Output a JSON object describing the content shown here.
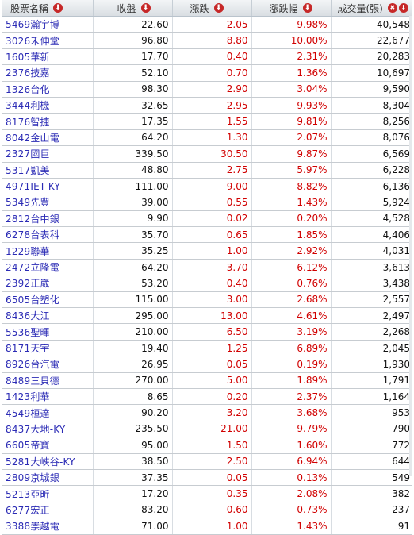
{
  "header": {
    "col_name": "股票名稱",
    "col_close": "收盤",
    "col_change": "漲跌",
    "col_pct": "漲跌幅",
    "col_volume": "成交量(張)",
    "sort_icon": "sort-down-icon",
    "close_icon": "close-icon",
    "sort_glyph": "⬇",
    "close_glyph": "✖"
  },
  "colors": {
    "change": "#d10000",
    "name": "#2b2bb5",
    "icon": "#c62828"
  },
  "rows": [
    {
      "name": "5469瀚宇博",
      "close": "22.60",
      "change": "2.05",
      "pct": "9.98%",
      "volume": "40,548"
    },
    {
      "name": "3026禾伸堂",
      "close": "96.80",
      "change": "8.80",
      "pct": "10.00%",
      "volume": "22,677"
    },
    {
      "name": "1605華新",
      "close": "17.70",
      "change": "0.40",
      "pct": "2.31%",
      "volume": "20,283"
    },
    {
      "name": "2376技嘉",
      "close": "52.10",
      "change": "0.70",
      "pct": "1.36%",
      "volume": "10,697"
    },
    {
      "name": "1326台化",
      "close": "98.30",
      "change": "2.90",
      "pct": "3.04%",
      "volume": "9,590"
    },
    {
      "name": "3444利機",
      "close": "32.65",
      "change": "2.95",
      "pct": "9.93%",
      "volume": "8,304"
    },
    {
      "name": "8176智捷",
      "close": "17.35",
      "change": "1.55",
      "pct": "9.81%",
      "volume": "8,256"
    },
    {
      "name": "8042金山電",
      "close": "64.20",
      "change": "1.30",
      "pct": "2.07%",
      "volume": "8,076"
    },
    {
      "name": "2327國巨",
      "close": "339.50",
      "change": "30.50",
      "pct": "9.87%",
      "volume": "6,569"
    },
    {
      "name": "5317凱美",
      "close": "48.80",
      "change": "2.75",
      "pct": "5.97%",
      "volume": "6,228"
    },
    {
      "name": "4971IET-KY",
      "close": "111.00",
      "change": "9.00",
      "pct": "8.82%",
      "volume": "6,136"
    },
    {
      "name": "5349先豐",
      "close": "39.00",
      "change": "0.55",
      "pct": "1.43%",
      "volume": "5,924"
    },
    {
      "name": "2812台中銀",
      "close": "9.90",
      "change": "0.02",
      "pct": "0.20%",
      "volume": "4,528"
    },
    {
      "name": "6278台表科",
      "close": "35.70",
      "change": "0.65",
      "pct": "1.85%",
      "volume": "4,406"
    },
    {
      "name": "1229聯華",
      "close": "35.25",
      "change": "1.00",
      "pct": "2.92%",
      "volume": "4,031"
    },
    {
      "name": "2472立隆電",
      "close": "64.20",
      "change": "3.70",
      "pct": "6.12%",
      "volume": "3,613"
    },
    {
      "name": "2392正崴",
      "close": "53.20",
      "change": "0.40",
      "pct": "0.76%",
      "volume": "3,438"
    },
    {
      "name": "6505台塑化",
      "close": "115.00",
      "change": "3.00",
      "pct": "2.68%",
      "volume": "2,557"
    },
    {
      "name": "8436大江",
      "close": "295.00",
      "change": "13.00",
      "pct": "4.61%",
      "volume": "2,497"
    },
    {
      "name": "5536聖暉",
      "close": "210.00",
      "change": "6.50",
      "pct": "3.19%",
      "volume": "2,268"
    },
    {
      "name": "8171天宇",
      "close": "19.40",
      "change": "1.25",
      "pct": "6.89%",
      "volume": "2,045"
    },
    {
      "name": "8926台汽電",
      "close": "26.95",
      "change": "0.05",
      "pct": "0.19%",
      "volume": "1,930"
    },
    {
      "name": "8489三貝德",
      "close": "270.00",
      "change": "5.00",
      "pct": "1.89%",
      "volume": "1,791"
    },
    {
      "name": "1423利華",
      "close": "8.65",
      "change": "0.20",
      "pct": "2.37%",
      "volume": "1,164"
    },
    {
      "name": "4549桓達",
      "close": "90.20",
      "change": "3.20",
      "pct": "3.68%",
      "volume": "953"
    },
    {
      "name": "8437大地-KY",
      "close": "235.50",
      "change": "21.00",
      "pct": "9.79%",
      "volume": "790"
    },
    {
      "name": "6605帝寶",
      "close": "95.00",
      "change": "1.50",
      "pct": "1.60%",
      "volume": "772"
    },
    {
      "name": "5281大峽谷-KY",
      "close": "38.50",
      "change": "2.50",
      "pct": "6.94%",
      "volume": "644"
    },
    {
      "name": "2809京城銀",
      "close": "37.35",
      "change": "0.05",
      "pct": "0.13%",
      "volume": "549"
    },
    {
      "name": "5213亞昕",
      "close": "17.20",
      "change": "0.35",
      "pct": "2.08%",
      "volume": "382"
    },
    {
      "name": "6277宏正",
      "close": "83.20",
      "change": "0.60",
      "pct": "0.73%",
      "volume": "237"
    },
    {
      "name": "3388崇越電",
      "close": "71.00",
      "change": "1.00",
      "pct": "1.43%",
      "volume": "91"
    }
  ]
}
